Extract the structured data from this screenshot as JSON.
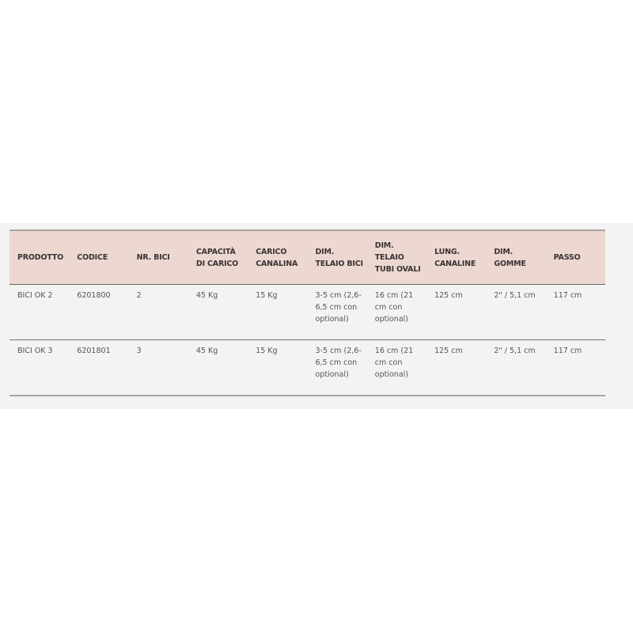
{
  "table": {
    "headers": [
      "PRODOTTO",
      "CODICE",
      "NR. BICI",
      "CAPACITÀ DI CARICO",
      "CARICO CANALINA",
      "DIM. TELAIO BICI",
      "DIM. TELAIO TUBI OVALI",
      "LUNG. CANALINE",
      "DIM. GOMME",
      "PASSO"
    ],
    "rows": [
      [
        "BICI OK 2",
        "6201800",
        "2",
        "45 Kg",
        "15 Kg",
        "3-5 cm (2,6-6,5 cm con optional)",
        "16 cm (21 cm con optional)",
        "125 cm",
        "2\" / 5,1 cm",
        "117 cm"
      ],
      [
        "BICI OK 3",
        "6201801",
        "3",
        "45 Kg",
        "15 Kg",
        "3-5 cm (2,6-6,5 cm con optional)",
        "16 cm (21 cm con optional)",
        "125 cm",
        "2\" / 5,1 cm",
        "117 cm"
      ]
    ]
  },
  "colors": {
    "header_bg": "#ecd7d1",
    "band_bg": "#f3f3f3"
  }
}
